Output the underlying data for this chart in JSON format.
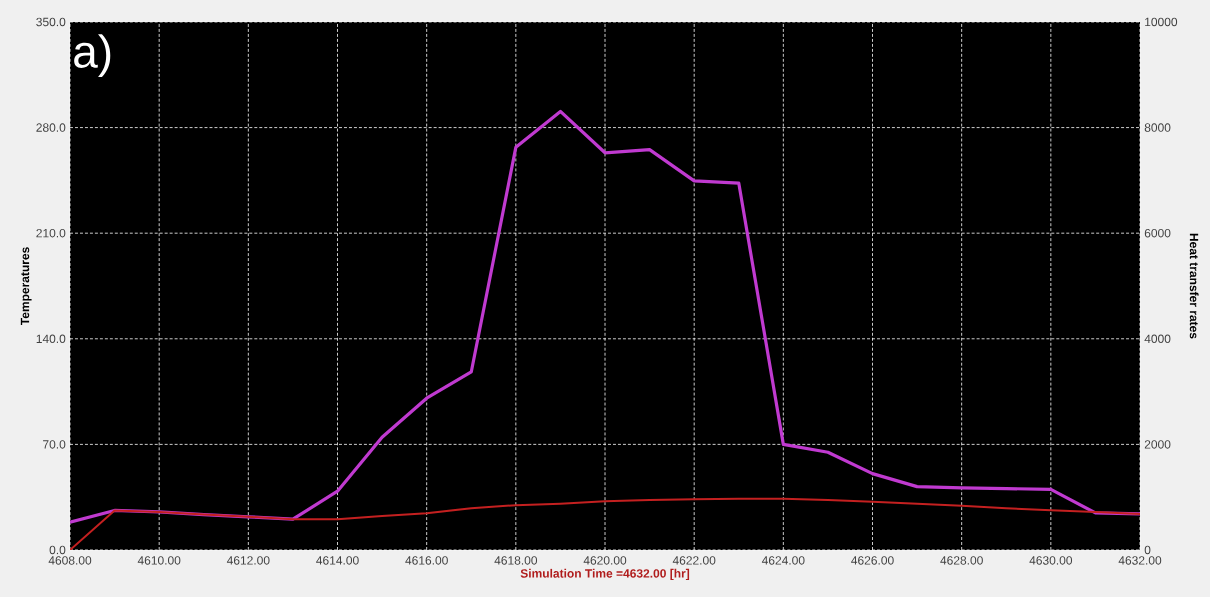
{
  "chart_data": {
    "type": "line",
    "xlabel": "Simulation Time =4632.00 [hr]",
    "ylabel": "Temperatures",
    "y2label": "Heat transfer rates",
    "annotations": [
      "a)"
    ],
    "x": [
      4608,
      4609,
      4610,
      4611,
      4612,
      4613,
      4614,
      4615,
      4616,
      4617,
      4618,
      4619,
      4620,
      4621,
      4622,
      4623,
      4624,
      4625,
      4626,
      4627,
      4628,
      4629,
      4630,
      4631,
      4632
    ],
    "series": [
      {
        "color": "#c03ad0",
        "values": [
          18.4,
          26.2,
          25.2,
          23.5,
          22,
          20.4,
          39,
          74.7,
          100.6,
          118,
          266.9,
          290.7,
          263.3,
          265.4,
          244.7,
          243.2,
          70,
          64.8,
          50.6,
          42,
          41.2,
          40.7,
          40.2,
          24.6,
          23.9
        ]
      },
      {
        "color": "#c42020",
        "values": [
          0,
          26.2,
          25.2,
          23.5,
          22,
          20.4,
          20.4,
          22.5,
          24.4,
          27.7,
          29.7,
          30.7,
          32.3,
          33.2,
          33.7,
          34,
          34,
          33.2,
          31.9,
          30.6,
          29.3,
          27.7,
          26.4,
          25.1,
          23.9
        ]
      }
    ],
    "xlim": [
      4608,
      4632
    ],
    "xticks": [
      {
        "value": 4608,
        "label": "4608.00"
      },
      {
        "value": 4610,
        "label": "4610.00"
      },
      {
        "value": 4612,
        "label": "4612.00"
      },
      {
        "value": 4614,
        "label": "4614.00"
      },
      {
        "value": 4616,
        "label": "4616.00"
      },
      {
        "value": 4618,
        "label": "4618.00"
      },
      {
        "value": 4620,
        "label": "4620.00"
      },
      {
        "value": 4622,
        "label": "4622.00"
      },
      {
        "value": 4624,
        "label": "4624.00"
      },
      {
        "value": 4626,
        "label": "4626.00"
      },
      {
        "value": 4628,
        "label": "4628.00"
      },
      {
        "value": 4630,
        "label": "4630.00"
      },
      {
        "value": 4632,
        "label": "4632.00"
      }
    ],
    "ylim": [
      0,
      350
    ],
    "yticks": [
      {
        "value": 0,
        "label": "0.0"
      },
      {
        "value": 70,
        "label": "70.0"
      },
      {
        "value": 140,
        "label": "140.0"
      },
      {
        "value": 210,
        "label": "210.0"
      },
      {
        "value": 280,
        "label": "280.0"
      },
      {
        "value": 350,
        "label": "350.0"
      }
    ],
    "y2lim": [
      0,
      10000
    ],
    "y2ticks": [
      0,
      2000,
      4000,
      6000,
      8000,
      10000
    ],
    "grid": true,
    "marker": "none",
    "line_style": "solid"
  }
}
